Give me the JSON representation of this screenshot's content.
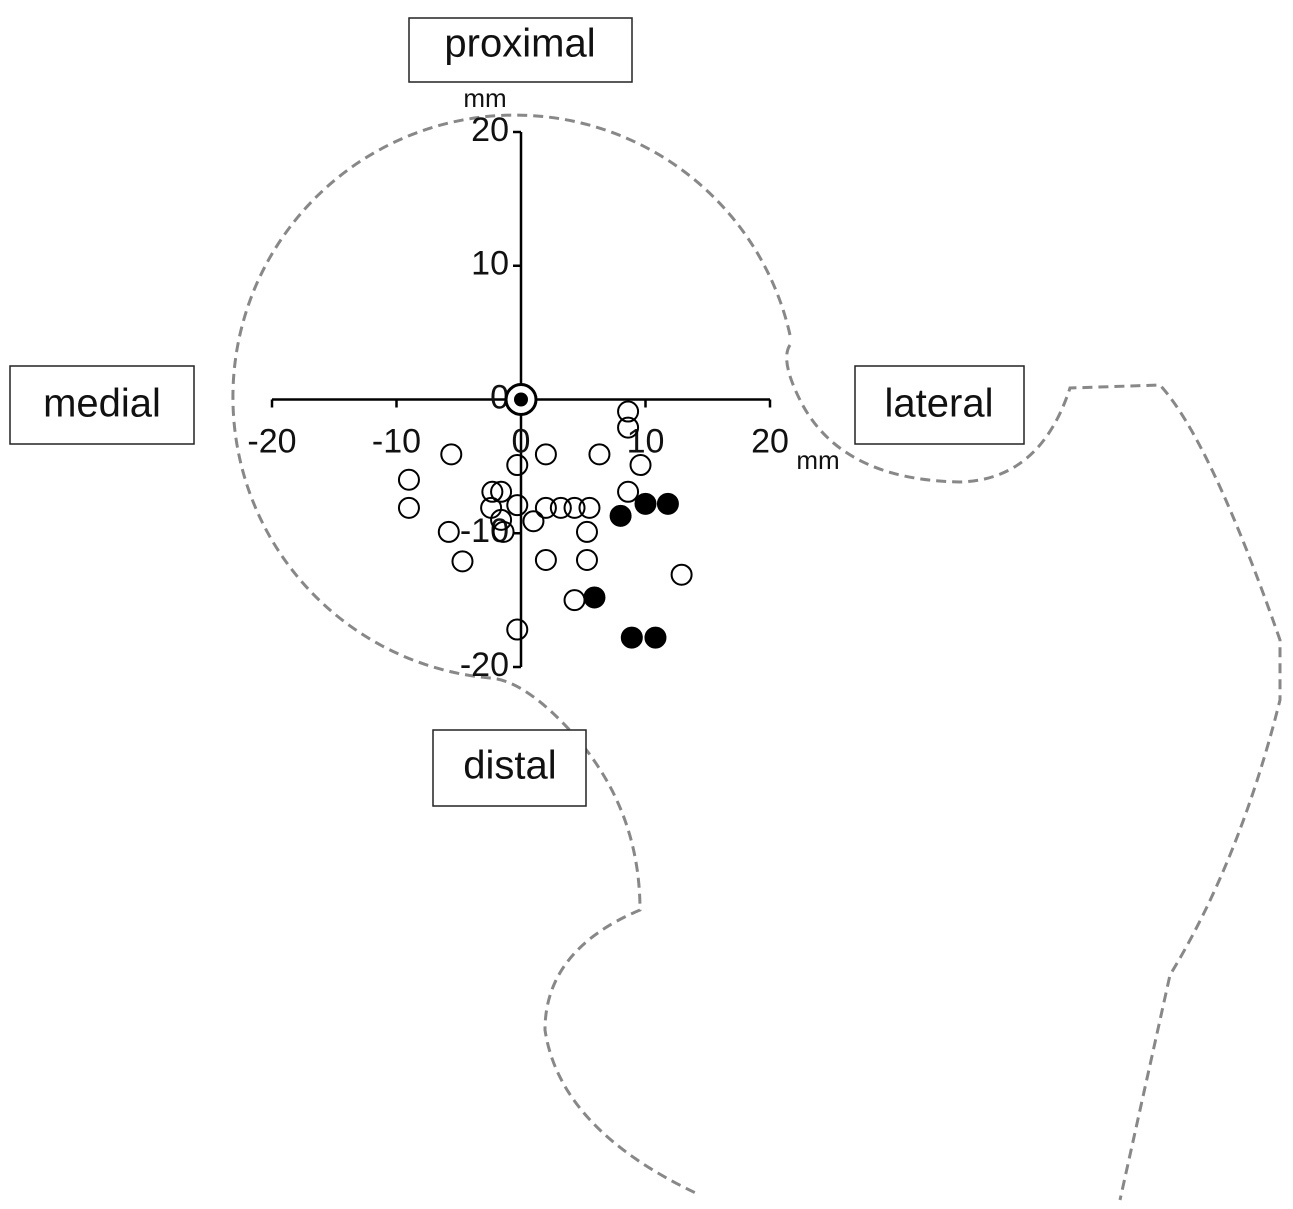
{
  "chart_data": {
    "type": "scatter",
    "labels": {
      "top": "proximal",
      "bottom": "distal",
      "left": "medial",
      "right": "lateral"
    },
    "x_unit": "mm",
    "y_unit": "mm",
    "xlim": [
      -20,
      20
    ],
    "ylim": [
      -20,
      20
    ],
    "xticks": [
      -20,
      -10,
      0,
      10,
      20
    ],
    "yticks": [
      -20,
      -10,
      0,
      10,
      20
    ],
    "series": [
      {
        "marker": "open",
        "color": "#000000",
        "x": [
          8.6,
          8.6,
          -5.6,
          2.0,
          6.3,
          9.6,
          -0.3,
          -9.0,
          -9.0,
          -2.3,
          -1.6,
          8.6,
          -2.4,
          -0.3,
          2.0,
          3.2,
          4.3,
          5.5,
          -1.6,
          1.0,
          -5.8,
          -1.4,
          5.3,
          2.0,
          5.3,
          -4.7,
          12.9,
          4.3,
          -0.3
        ],
        "values": [
          -0.9,
          -2.1,
          -4.1,
          -4.1,
          -4.1,
          -4.9,
          -4.9,
          -6.0,
          -8.1,
          -6.9,
          -6.9,
          -6.9,
          -8.1,
          -7.9,
          -8.1,
          -8.1,
          -8.1,
          -8.1,
          -9.0,
          -9.1,
          -9.9,
          -9.9,
          -9.9,
          -12.0,
          -12.0,
          -12.1,
          -13.1,
          -15.0,
          -17.2
        ]
      },
      {
        "marker": "filled",
        "color": "#000000",
        "x": [
          8.0,
          10.0,
          11.8,
          5.9,
          8.9,
          10.8
        ],
        "values": [
          -8.7,
          -7.8,
          -7.8,
          -14.8,
          -17.8,
          -17.8
        ]
      },
      {
        "marker": "target",
        "color": "#000000",
        "x": [
          0
        ],
        "values": [
          0
        ]
      }
    ]
  }
}
